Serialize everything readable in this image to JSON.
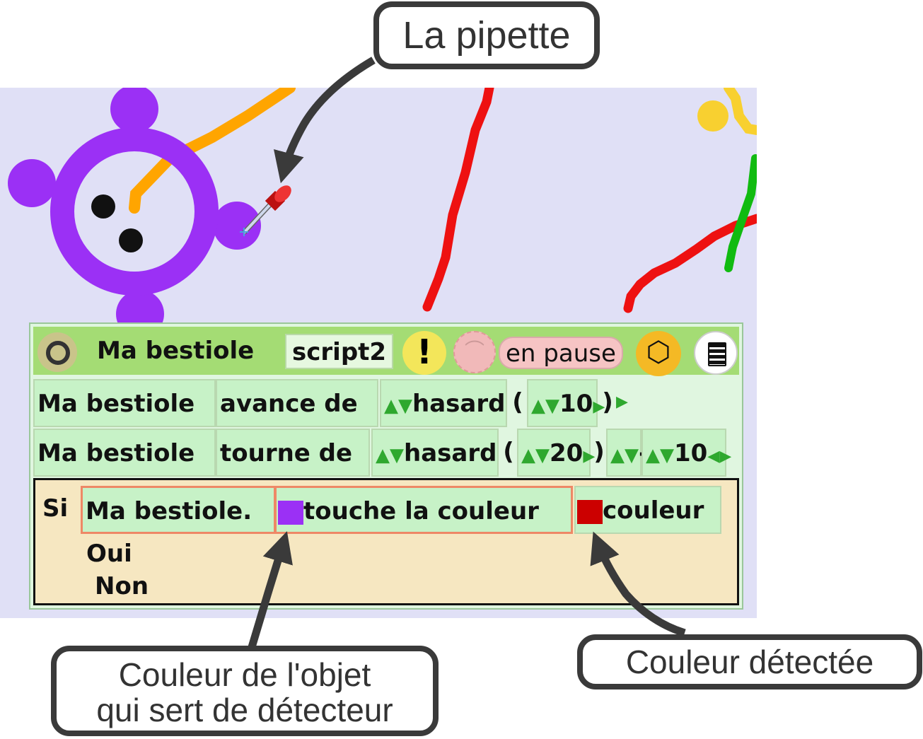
{
  "callouts": {
    "pipette": "La pipette",
    "detector_line1": "Couleur de l'objet",
    "detector_line2": "qui sert de détecteur",
    "detected": "Couleur détectée"
  },
  "icons": {
    "pipette": "eyedropper-icon",
    "run": "ring-icon",
    "warning": "exclamation-icon",
    "clock": "clock-icon",
    "objects": "cube-icon",
    "menu": "notepad-icon"
  },
  "colors": {
    "stage_bg": "#e0e0f6",
    "creature": "#9b30f5",
    "orange_trail": "#ffa500",
    "red_trail": "#ee1111",
    "green_trail": "#11bb11",
    "yellow_trail": "#f8d030",
    "detector_swatch": "#9b30f5",
    "detected_swatch": "#cc0000"
  },
  "header": {
    "sprite_name": "Ma bestiole",
    "script_name": "script2",
    "warning": "!",
    "status": "en pause"
  },
  "row1": {
    "actor": "Ma bestiole",
    "command": "avance de",
    "func": "hasard",
    "open": "(",
    "arg": "10",
    "close": ")"
  },
  "row2": {
    "actor": "Ma bestiole",
    "command": "tourne de",
    "func": "hasard",
    "open": "(",
    "arg": "20",
    "close": ")",
    "minus": "-",
    "arg2": "10"
  },
  "if_block": {
    "si": "Si",
    "object": "Ma bestiole.",
    "method": "touche la couleur",
    "param": "couleur",
    "yes": "Oui",
    "no": "Non"
  }
}
